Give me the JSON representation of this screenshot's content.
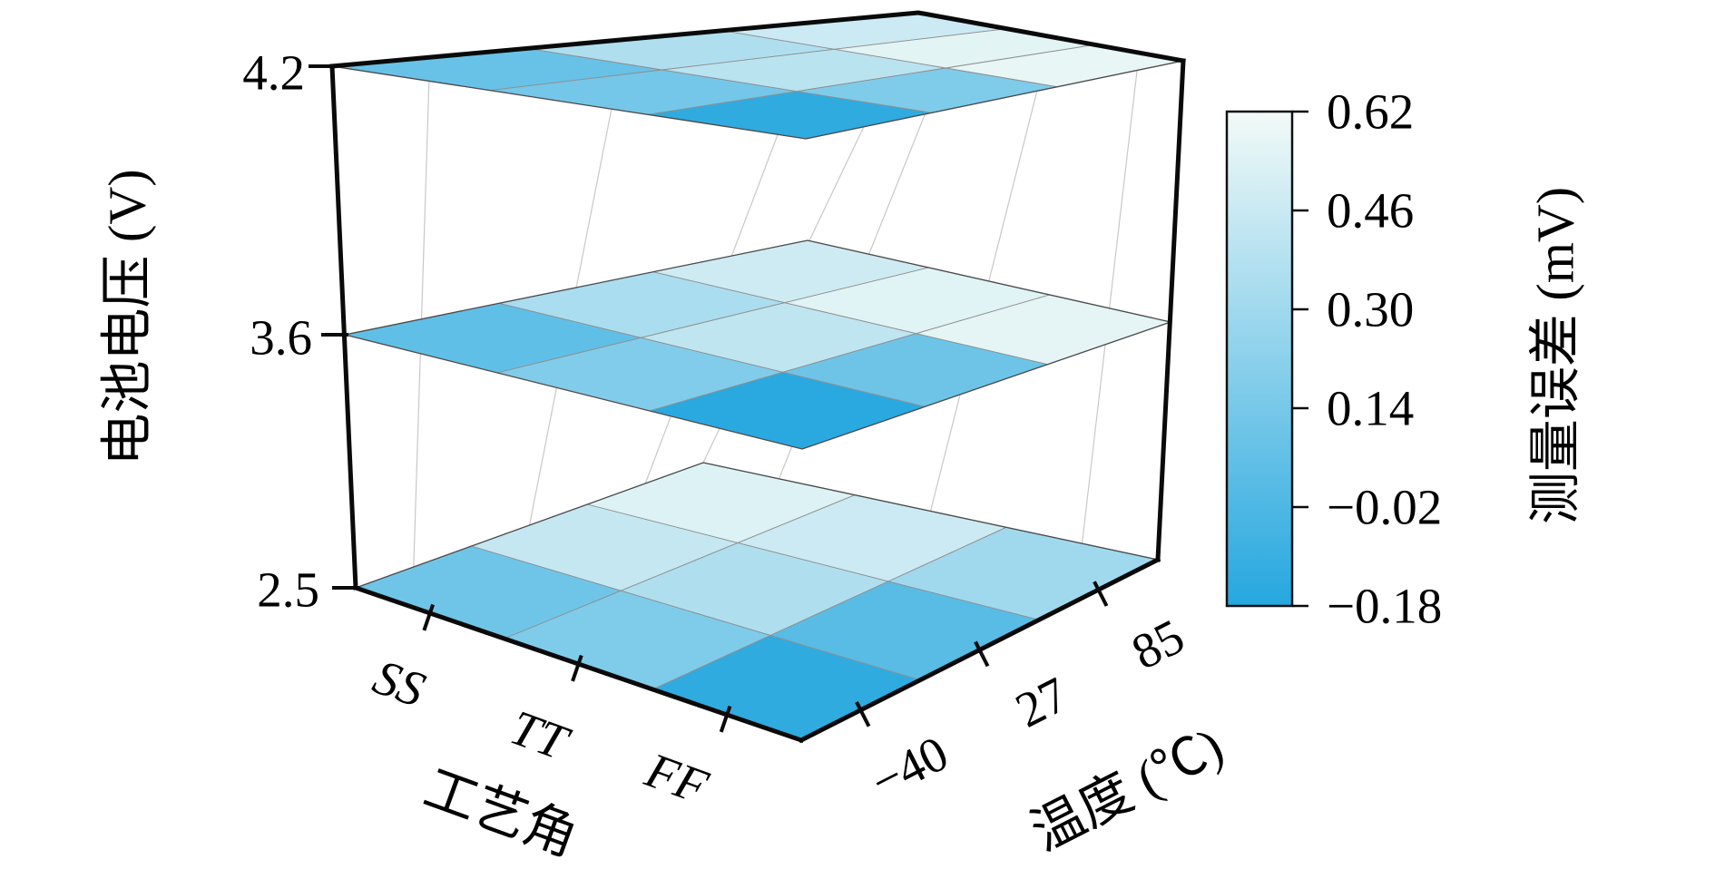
{
  "chart_data": {
    "type": "heatmap",
    "subtype": "3d-stacked-heatmap-layers",
    "title": "",
    "background": "#ffffff",
    "x_axis": {
      "label": "工艺角",
      "categories": [
        "SS",
        "TT",
        "FF"
      ]
    },
    "y_axis": {
      "label": "温度 (℃)",
      "categories": [
        "−40",
        "27",
        "85"
      ]
    },
    "z_axis": {
      "label": "电池电压 (V)",
      "ticks": [
        "2.5",
        "3.6",
        "4.2"
      ]
    },
    "colorbar": {
      "label": "测量误差 (mV)",
      "tick_labels": [
        "0.62",
        "0.46",
        "0.30",
        "0.14",
        "−0.02",
        "−0.18"
      ],
      "vmin": -0.18,
      "vmax": 0.62,
      "unit": "mV",
      "color_low": "#25a7df",
      "color_high": "#f2faf7",
      "position": "right"
    },
    "value_grid_order": "values[x][y]: x follows 工艺角 categories SS/TT/FF, y follows 温度 categories −40/27/85, unit mV",
    "layers": [
      {
        "voltage": "2.5",
        "values": [
          [
            0.11,
            0.44,
            0.54
          ],
          [
            0.17,
            0.36,
            0.47
          ],
          [
            -0.14,
            0.02,
            0.3
          ]
        ]
      },
      {
        "voltage": "3.6",
        "values": [
          [
            0.05,
            0.34,
            0.48
          ],
          [
            0.18,
            0.42,
            0.55
          ],
          [
            -0.16,
            0.1,
            0.57
          ]
        ]
      },
      {
        "voltage": "4.2",
        "values": [
          [
            0.08,
            0.36,
            0.47
          ],
          [
            0.13,
            0.4,
            0.56
          ],
          [
            -0.14,
            0.17,
            0.58
          ]
        ]
      }
    ]
  }
}
